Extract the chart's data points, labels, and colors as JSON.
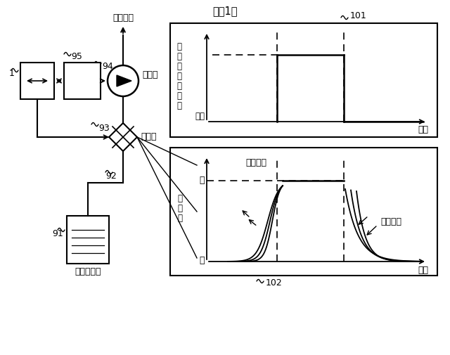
{
  "title": "『図1』",
  "bg_color": "#ffffff",
  "label_101": "101",
  "label_102": "102",
  "label_1": "1",
  "label_91": "91",
  "label_92": "92",
  "label_93": "93",
  "label_94": "94",
  "label_95": "95",
  "label_pump": "ポンプ",
  "label_valve": "電磁弁",
  "label_tank": "送液タンク",
  "label_analysis": "分析部へ",
  "label_pump_speed_v": "ポ\nン\nプ\n送\n液\n速\n度",
  "label_stop": "停止",
  "label_time1": "時間",
  "label_time2": "時間",
  "label_open": "開",
  "label_close": "閉",
  "label_valve_pos_v": "弁\n変\n位",
  "label_baratuku1": "ばらつく",
  "label_baratuku2": "ばらつく",
  "line_color": "#000000"
}
